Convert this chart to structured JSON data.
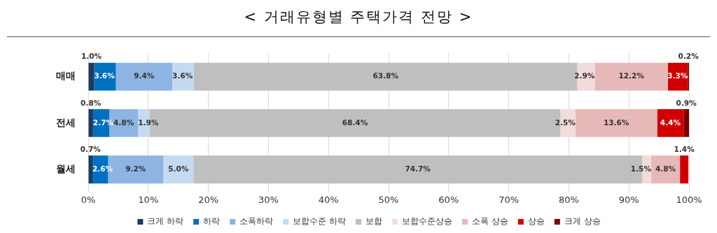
{
  "chart_data": {
    "type": "bar",
    "orientation": "horizontal",
    "stacked": true,
    "title": "< 거래유형별 주택가격 전망 >",
    "categories": [
      "매매",
      "전세",
      "월세"
    ],
    "xlim": [
      0,
      100
    ],
    "xticks": [
      {
        "value": 0,
        "label": "0%"
      },
      {
        "value": 10,
        "label": "10%"
      },
      {
        "value": 20,
        "label": "20%"
      },
      {
        "value": 30,
        "label": "30%"
      },
      {
        "value": 40,
        "label": "40%"
      },
      {
        "value": 50,
        "label": "50%"
      },
      {
        "value": 60,
        "label": "60%"
      },
      {
        "value": 70,
        "label": "70%"
      },
      {
        "value": 80,
        "label": "80%"
      },
      {
        "value": 90,
        "label": "90%"
      },
      {
        "value": 100,
        "label": "100%"
      }
    ],
    "grid": "x",
    "legend": "bottom",
    "series": [
      {
        "name": "크게 하락",
        "color": "#1f3864",
        "values": [
          1.0,
          0.8,
          0.7
        ],
        "value_labels": [
          "1.0%",
          "0.8%",
          "0.7%"
        ]
      },
      {
        "name": "하락",
        "color": "#0070c0",
        "values": [
          3.6,
          2.7,
          2.6
        ],
        "value_labels": [
          "3.6%",
          "2.7%",
          "2.6%"
        ]
      },
      {
        "name": "소폭하락",
        "color": "#8eb4e3",
        "values": [
          9.4,
          4.8,
          9.2
        ],
        "value_labels": [
          "9.4%",
          "4.8%",
          "9.2%"
        ]
      },
      {
        "name": "보합수준 하락",
        "color": "#c5d9f1",
        "values": [
          3.6,
          1.9,
          5.0
        ],
        "value_labels": [
          "3.6%",
          "1.9%",
          "5.0%"
        ]
      },
      {
        "name": "보합",
        "color": "#bfbfbf",
        "values": [
          63.8,
          68.4,
          74.7
        ],
        "value_labels": [
          "63.8%",
          "68.4%",
          "74.7%"
        ]
      },
      {
        "name": "보합수준상승",
        "color": "#f2dcdb",
        "values": [
          2.9,
          2.5,
          1.5
        ],
        "value_labels": [
          "2.9%",
          "2.5%",
          "1.5%"
        ]
      },
      {
        "name": "소폭 상승",
        "color": "#e6b9b8",
        "values": [
          12.2,
          13.6,
          4.8
        ],
        "value_labels": [
          "12.2%",
          "13.6%",
          "4.8%"
        ]
      },
      {
        "name": "상승",
        "color": "#d00000",
        "values": [
          3.3,
          4.4,
          1.4
        ],
        "value_labels": [
          "3.3%",
          "4.4%",
          "1.4%"
        ]
      },
      {
        "name": "크게 상승",
        "color": "#7b0000",
        "values": [
          0.2,
          0.9,
          0
        ],
        "value_labels": [
          "0.2%",
          "0.9%",
          null
        ]
      }
    ]
  }
}
